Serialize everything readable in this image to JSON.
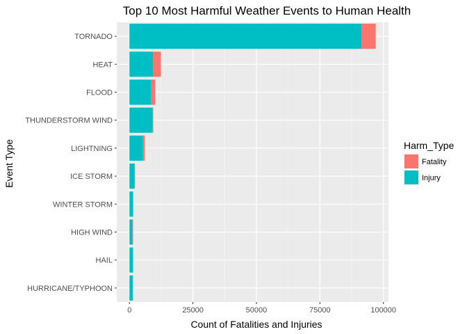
{
  "chart_data": {
    "type": "bar",
    "orientation": "horizontal",
    "stacked": true,
    "title": "Top 10 Most Harmful Weather Events to Human Health",
    "xlabel": "Count of Fatalities and Injuries",
    "ylabel": "Event Type",
    "xlim": [
      -5000,
      102000
    ],
    "x_ticks": [
      0,
      25000,
      50000,
      75000,
      100000
    ],
    "x_tick_labels": [
      "0",
      "25000",
      "50000",
      "75000",
      "100000"
    ],
    "grid": true,
    "legend_position": "right",
    "categories": [
      "TORNADO",
      "HEAT",
      "FLOOD",
      "THUNDERSTORM WIND",
      "LIGHTNING",
      "ICE STORM",
      "WINTER STORM",
      "HIGH WIND",
      "HAIL",
      "HURRICANE/TYPHOON"
    ],
    "legend": {
      "title": "Harm_Type",
      "items": [
        "Fatality",
        "Injury"
      ]
    },
    "series": [
      {
        "name": "Injury",
        "color": "#00BFC4",
        "values": [
          91346,
          9224,
          8600,
          9163,
          5230,
          1975,
          1321,
          1137,
          1361,
          1275
        ]
      },
      {
        "name": "Fatality",
        "color": "#F8766D",
        "values": [
          5633,
          3138,
          1549,
          210,
          816,
          89,
          206,
          299,
          15,
          64
        ]
      }
    ]
  }
}
